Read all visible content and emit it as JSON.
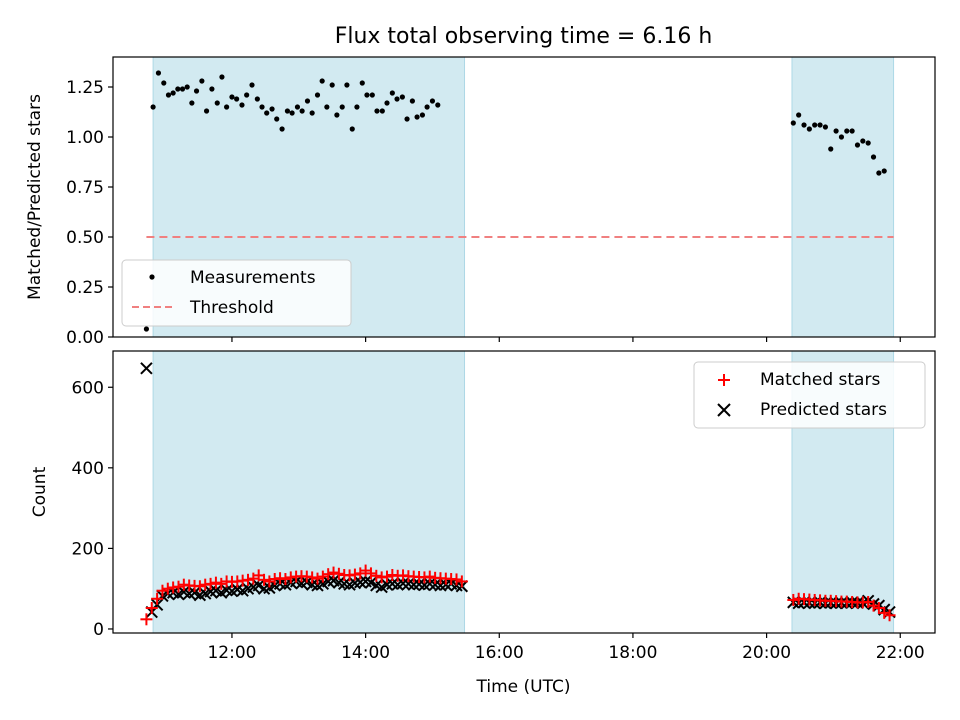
{
  "title": "Flux total observing time = 6.16 h",
  "colors": {
    "shade": "#add8e6",
    "measurements": "#000000",
    "threshold": "#f08080",
    "matched": "#ff0000",
    "predicted": "#000000"
  },
  "chart_data": [
    {
      "type": "scatter",
      "ylabel": "Matched/Predicted stars",
      "ylim": [
        0,
        1.4
      ],
      "yticks": [
        0,
        0.25,
        0.5,
        0.75,
        1.0,
        1.25
      ],
      "ytick_labels": [
        "0.00",
        "0.25",
        "0.50",
        "0.75",
        "1.00",
        "1.25"
      ],
      "xlim_hours": [
        10.22,
        22.52
      ],
      "xticks_hours": [
        12,
        14,
        16,
        18,
        20,
        22
      ],
      "xtick_labels": [
        "12:00",
        "14:00",
        "16:00",
        "18:00",
        "20:00",
        "22:00"
      ],
      "shaded_spans_hours": [
        [
          10.82,
          15.48
        ],
        [
          20.38,
          21.9
        ]
      ],
      "legend": {
        "location": "lower-left",
        "entries": [
          "Measurements",
          "Threshold"
        ]
      },
      "threshold": {
        "name": "Threshold",
        "value": 0.5,
        "x_range_hours": [
          10.72,
          21.9
        ]
      },
      "series": [
        {
          "name": "Measurements",
          "points": [
            [
              10.72,
              0.04
            ],
            [
              10.82,
              1.15
            ],
            [
              10.9,
              1.32
            ],
            [
              10.98,
              1.27
            ],
            [
              11.05,
              1.21
            ],
            [
              11.12,
              1.22
            ],
            [
              11.19,
              1.24
            ],
            [
              11.26,
              1.24
            ],
            [
              11.33,
              1.25
            ],
            [
              11.4,
              1.17
            ],
            [
              11.47,
              1.23
            ],
            [
              11.55,
              1.28
            ],
            [
              11.62,
              1.13
            ],
            [
              11.7,
              1.24
            ],
            [
              11.78,
              1.17
            ],
            [
              11.85,
              1.3
            ],
            [
              11.92,
              1.15
            ],
            [
              12.0,
              1.2
            ],
            [
              12.07,
              1.19
            ],
            [
              12.15,
              1.16
            ],
            [
              12.22,
              1.21
            ],
            [
              12.3,
              1.26
            ],
            [
              12.38,
              1.19
            ],
            [
              12.45,
              1.15
            ],
            [
              12.52,
              1.12
            ],
            [
              12.6,
              1.14
            ],
            [
              12.67,
              1.09
            ],
            [
              12.75,
              1.04
            ],
            [
              12.83,
              1.13
            ],
            [
              12.9,
              1.12
            ],
            [
              12.98,
              1.15
            ],
            [
              13.05,
              1.13
            ],
            [
              13.13,
              1.18
            ],
            [
              13.2,
              1.12
            ],
            [
              13.28,
              1.21
            ],
            [
              13.35,
              1.28
            ],
            [
              13.42,
              1.15
            ],
            [
              13.5,
              1.26
            ],
            [
              13.57,
              1.11
            ],
            [
              13.65,
              1.15
            ],
            [
              13.72,
              1.26
            ],
            [
              13.8,
              1.04
            ],
            [
              13.87,
              1.15
            ],
            [
              13.95,
              1.27
            ],
            [
              14.02,
              1.21
            ],
            [
              14.1,
              1.21
            ],
            [
              14.17,
              1.13
            ],
            [
              14.25,
              1.13
            ],
            [
              14.32,
              1.17
            ],
            [
              14.4,
              1.22
            ],
            [
              14.47,
              1.19
            ],
            [
              14.55,
              1.2
            ],
            [
              14.62,
              1.09
            ],
            [
              14.7,
              1.18
            ],
            [
              14.77,
              1.1
            ],
            [
              14.85,
              1.11
            ],
            [
              14.92,
              1.15
            ],
            [
              15.0,
              1.18
            ],
            [
              15.08,
              1.16
            ],
            [
              20.4,
              1.07
            ],
            [
              20.48,
              1.11
            ],
            [
              20.56,
              1.06
            ],
            [
              20.64,
              1.04
            ],
            [
              20.72,
              1.06
            ],
            [
              20.8,
              1.06
            ],
            [
              20.88,
              1.05
            ],
            [
              20.96,
              0.94
            ],
            [
              21.04,
              1.03
            ],
            [
              21.12,
              1.0
            ],
            [
              21.2,
              1.03
            ],
            [
              21.28,
              1.03
            ],
            [
              21.36,
              0.96
            ],
            [
              21.44,
              0.98
            ],
            [
              21.52,
              0.97
            ],
            [
              21.6,
              0.9
            ],
            [
              21.68,
              0.82
            ],
            [
              21.76,
              0.83
            ]
          ]
        }
      ]
    },
    {
      "type": "scatter",
      "xlabel": "Time (UTC)",
      "ylabel": "Count",
      "ylim": [
        -10,
        690
      ],
      "yticks": [
        0,
        200,
        400,
        600
      ],
      "ytick_labels": [
        "0",
        "200",
        "400",
        "600"
      ],
      "xlim_hours": [
        10.22,
        22.52
      ],
      "xticks_hours": [
        12,
        14,
        16,
        18,
        20,
        22
      ],
      "xtick_labels": [
        "12:00",
        "14:00",
        "16:00",
        "18:00",
        "20:00",
        "22:00"
      ],
      "shaded_spans_hours": [
        [
          10.82,
          15.48
        ],
        [
          20.38,
          21.9
        ]
      ],
      "legend": {
        "location": "upper-right",
        "entries": [
          "Matched stars",
          "Predicted stars"
        ]
      },
      "series": [
        {
          "name": "Matched stars",
          "points": [
            [
              10.72,
              24
            ],
            [
              10.8,
              52
            ],
            [
              10.88,
              75
            ],
            [
              10.96,
              95
            ],
            [
              11.04,
              100
            ],
            [
              11.12,
              103
            ],
            [
              11.2,
              105
            ],
            [
              11.28,
              110
            ],
            [
              11.36,
              108
            ],
            [
              11.44,
              107
            ],
            [
              11.52,
              106
            ],
            [
              11.6,
              110
            ],
            [
              11.68,
              112
            ],
            [
              11.76,
              115
            ],
            [
              11.84,
              112
            ],
            [
              11.92,
              118
            ],
            [
              12.0,
              117
            ],
            [
              12.08,
              118
            ],
            [
              12.16,
              120
            ],
            [
              12.24,
              122
            ],
            [
              12.32,
              125
            ],
            [
              12.4,
              133
            ],
            [
              12.48,
              122
            ],
            [
              12.56,
              118
            ],
            [
              12.64,
              124
            ],
            [
              12.72,
              126
            ],
            [
              12.8,
              124
            ],
            [
              12.88,
              128
            ],
            [
              12.96,
              130
            ],
            [
              13.04,
              131
            ],
            [
              13.12,
              130
            ],
            [
              13.2,
              128
            ],
            [
              13.28,
              125
            ],
            [
              13.36,
              130
            ],
            [
              13.44,
              136
            ],
            [
              13.52,
              140
            ],
            [
              13.6,
              137
            ],
            [
              13.68,
              134
            ],
            [
              13.76,
              133
            ],
            [
              13.84,
              135
            ],
            [
              13.92,
              138
            ],
            [
              14.0,
              145
            ],
            [
              14.08,
              138
            ],
            [
              14.16,
              132
            ],
            [
              14.24,
              128
            ],
            [
              14.32,
              130
            ],
            [
              14.4,
              134
            ],
            [
              14.48,
              132
            ],
            [
              14.56,
              133
            ],
            [
              14.64,
              131
            ],
            [
              14.72,
              130
            ],
            [
              14.8,
              129
            ],
            [
              14.88,
              128
            ],
            [
              14.96,
              130
            ],
            [
              15.04,
              127
            ],
            [
              15.12,
              126
            ],
            [
              15.2,
              125
            ],
            [
              15.28,
              124
            ],
            [
              15.36,
              123
            ],
            [
              15.44,
              118
            ],
            [
              20.4,
              72
            ],
            [
              20.48,
              75
            ],
            [
              20.56,
              74
            ],
            [
              20.64,
              73
            ],
            [
              20.72,
              72
            ],
            [
              20.8,
              71
            ],
            [
              20.88,
              70
            ],
            [
              20.96,
              70
            ],
            [
              21.04,
              69
            ],
            [
              21.12,
              68
            ],
            [
              21.2,
              68
            ],
            [
              21.28,
              67
            ],
            [
              21.36,
              66
            ],
            [
              21.44,
              66
            ],
            [
              21.52,
              67
            ],
            [
              21.6,
              58
            ],
            [
              21.68,
              52
            ],
            [
              21.76,
              40
            ],
            [
              21.84,
              34
            ]
          ]
        },
        {
          "name": "Predicted stars",
          "points": [
            [
              10.72,
              647
            ],
            [
              10.8,
              42
            ],
            [
              10.88,
              60
            ],
            [
              10.96,
              82
            ],
            [
              11.04,
              88
            ],
            [
              11.12,
              90
            ],
            [
              11.2,
              86
            ],
            [
              11.28,
              92
            ],
            [
              11.36,
              88
            ],
            [
              11.44,
              90
            ],
            [
              11.52,
              84
            ],
            [
              11.6,
              88
            ],
            [
              11.68,
              93
            ],
            [
              11.76,
              95
            ],
            [
              11.84,
              90
            ],
            [
              11.92,
              96
            ],
            [
              12.0,
              94
            ],
            [
              12.08,
              98
            ],
            [
              12.16,
              95
            ],
            [
              12.24,
              100
            ],
            [
              12.32,
              104
            ],
            [
              12.4,
              108
            ],
            [
              12.48,
              100
            ],
            [
              12.56,
              102
            ],
            [
              12.64,
              108
            ],
            [
              12.72,
              112
            ],
            [
              12.8,
              110
            ],
            [
              12.88,
              115
            ],
            [
              12.96,
              118
            ],
            [
              13.04,
              113
            ],
            [
              13.12,
              116
            ],
            [
              13.2,
              110
            ],
            [
              13.28,
              108
            ],
            [
              13.36,
              112
            ],
            [
              13.44,
              118
            ],
            [
              13.52,
              120
            ],
            [
              13.6,
              115
            ],
            [
              13.68,
              112
            ],
            [
              13.76,
              110
            ],
            [
              13.84,
              114
            ],
            [
              13.92,
              116
            ],
            [
              14.0,
              118
            ],
            [
              14.08,
              115
            ],
            [
              14.16,
              108
            ],
            [
              14.24,
              104
            ],
            [
              14.32,
              110
            ],
            [
              14.4,
              112
            ],
            [
              14.48,
              110
            ],
            [
              14.56,
              113
            ],
            [
              14.64,
              112
            ],
            [
              14.72,
              110
            ],
            [
              14.8,
              111
            ],
            [
              14.88,
              109
            ],
            [
              14.96,
              112
            ],
            [
              15.04,
              110
            ],
            [
              15.12,
              108
            ],
            [
              15.2,
              110
            ],
            [
              15.28,
              112
            ],
            [
              15.36,
              108
            ],
            [
              15.44,
              106
            ],
            [
              20.4,
              66
            ],
            [
              20.48,
              64
            ],
            [
              20.56,
              66
            ],
            [
              20.64,
              65
            ],
            [
              20.72,
              64
            ],
            [
              20.8,
              66
            ],
            [
              20.88,
              64
            ],
            [
              20.96,
              65
            ],
            [
              21.04,
              64
            ],
            [
              21.12,
              65
            ],
            [
              21.2,
              64
            ],
            [
              21.28,
              66
            ],
            [
              21.36,
              65
            ],
            [
              21.44,
              64
            ],
            [
              21.52,
              70
            ],
            [
              21.6,
              62
            ],
            [
              21.68,
              58
            ],
            [
              21.76,
              48
            ],
            [
              21.84,
              42
            ]
          ]
        }
      ]
    }
  ]
}
